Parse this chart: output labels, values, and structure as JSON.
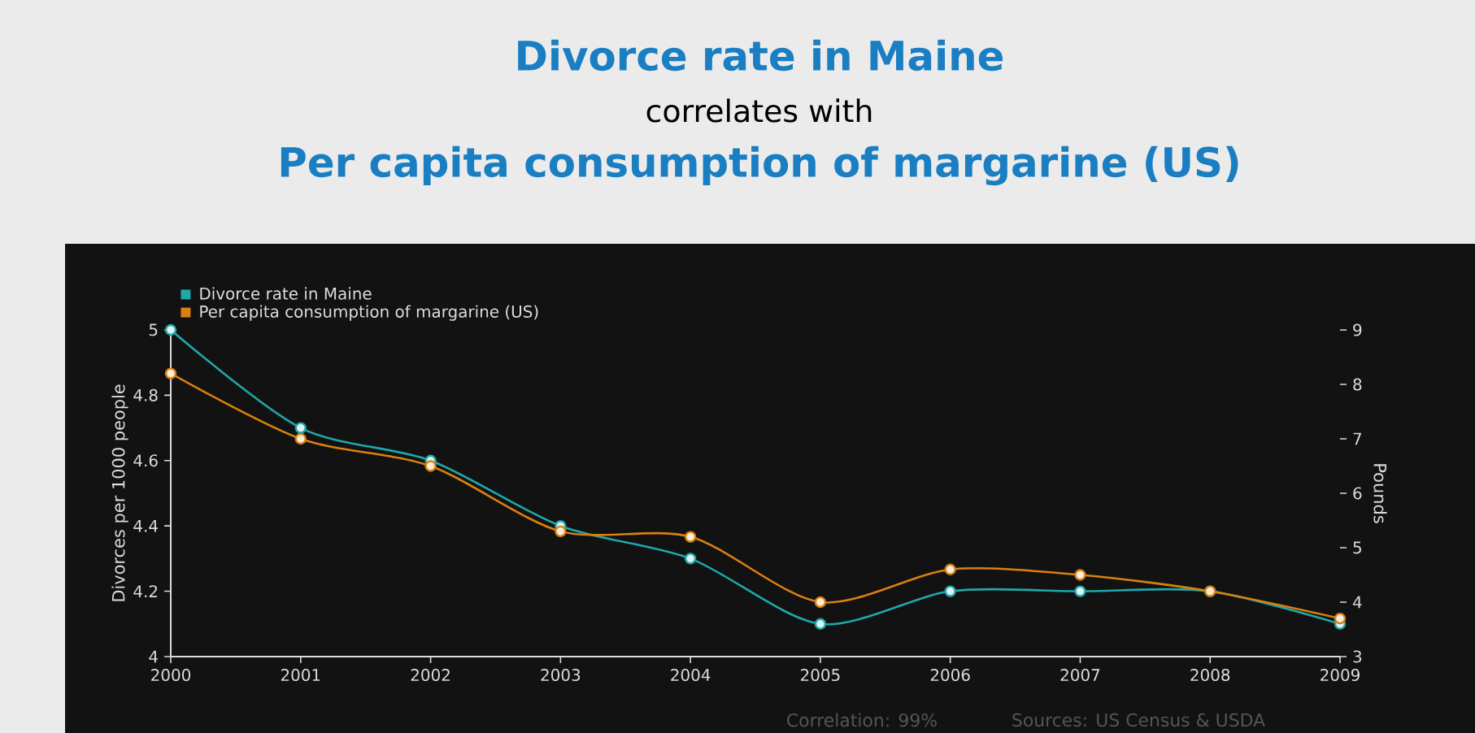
{
  "chart_data": {
    "type": "line",
    "title": "Divorce rate in Maine",
    "subtitle": "correlates with",
    "annotations": [
      "Per capita consumption of margarine (US)",
      "Correlation: 99%",
      "Sources: US Census & USDA"
    ],
    "xlabel": null,
    "ylabel": "Divorces per 1000 people",
    "y2label": "Pounds",
    "x": [
      2000,
      2001,
      2002,
      2003,
      2004,
      2005,
      2006,
      2007,
      2008,
      2009
    ],
    "xlim": [
      2000,
      2009
    ],
    "xticks": [
      2000,
      2001,
      2002,
      2003,
      2004,
      2005,
      2006,
      2007,
      2008,
      2009
    ],
    "ylim": [
      4,
      5
    ],
    "yticks": [
      4,
      4.2,
      4.4,
      4.6,
      4.8,
      5
    ],
    "y2lim": [
      3,
      9
    ],
    "y2ticks": [
      3,
      4,
      5,
      6,
      7,
      8,
      9
    ],
    "series": [
      {
        "name": "Divorce rate in Maine",
        "color": "#1fa8a8",
        "values": [
          5.0,
          4.7,
          4.6,
          4.4,
          4.3,
          4.1,
          4.2,
          4.2,
          4.2,
          4.1
        ]
      },
      {
        "name": "Per capita consumption of margarine (US)",
        "color": "#d9800f",
        "axis": "y2",
        "values": [
          8.2,
          7.0,
          6.5,
          5.3,
          5.2,
          4.0,
          4.6,
          4.5,
          4.2,
          3.7
        ]
      }
    ],
    "marker": "circle",
    "line_style": "solid",
    "legend": "top left",
    "grid": false
  }
}
